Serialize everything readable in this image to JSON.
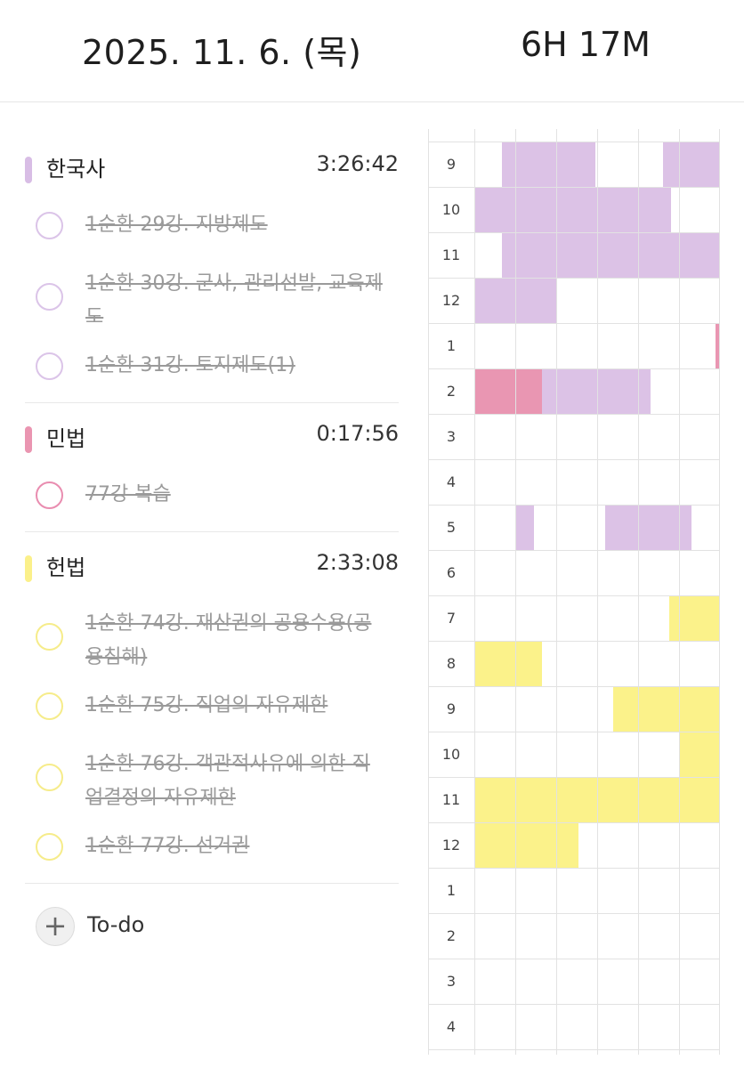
{
  "header": {
    "date": "2025. 11. 6. (목)",
    "total_time": "6H 17M"
  },
  "colors": {
    "purple": "#dcc2e6",
    "pink": "#e996b2",
    "yellow": "#fbf28a"
  },
  "subjects": [
    {
      "name": "한국사",
      "time": "3:26:42",
      "color": "#d8bde5",
      "circle": "#dbc4e8",
      "tasks": [
        "1순환 29강. 지방제도",
        "1순환 30강. 군사, 관리선발, 교육제도",
        "1순환 31강. 토지제도(1)"
      ]
    },
    {
      "name": "민법",
      "time": "0:17:56",
      "color": "#ea95b1",
      "circle": "#e98db0",
      "tasks": [
        "77강 복습"
      ]
    },
    {
      "name": "헌법",
      "time": "2:33:08",
      "color": "#fbf08a",
      "circle": "#f6ec8a",
      "tasks": [
        "1순환 74강. 재산권의 공용수용(공용침해)",
        "1순환 75강. 직업의 자유제한",
        "1순환 76강. 객관적사유에 의한 직업결정의 자유제한",
        "1순환 77강. 선거권"
      ]
    }
  ],
  "todo": {
    "label": "To-do",
    "icon": "plus-icon"
  },
  "timetable": {
    "hours": [
      "9",
      "10",
      "11",
      "12",
      "1",
      "2",
      "3",
      "4",
      "5",
      "6",
      "7",
      "8",
      "9",
      "10",
      "11",
      "12",
      "1",
      "2",
      "3",
      "4"
    ],
    "blocks": [
      {
        "row": 0,
        "from": 0.67,
        "to": 2.95,
        "color": "#dcc2e6"
      },
      {
        "row": 0,
        "from": 4.6,
        "to": 6.0,
        "color": "#dcc2e6"
      },
      {
        "row": 1,
        "from": 0.0,
        "to": 4.8,
        "color": "#dcc2e6"
      },
      {
        "row": 2,
        "from": 0.67,
        "to": 6.0,
        "color": "#dcc2e6"
      },
      {
        "row": 3,
        "from": 0.0,
        "to": 2.0,
        "color": "#dcc2e6"
      },
      {
        "row": 4,
        "from": 5.9,
        "to": 6.0,
        "color": "#e996b2"
      },
      {
        "row": 5,
        "from": 0.0,
        "to": 1.65,
        "color": "#e996b2"
      },
      {
        "row": 5,
        "from": 1.65,
        "to": 4.3,
        "color": "#dcc2e6"
      },
      {
        "row": 8,
        "from": 1.0,
        "to": 1.45,
        "color": "#dcc2e6"
      },
      {
        "row": 8,
        "from": 3.2,
        "to": 5.3,
        "color": "#dcc2e6"
      },
      {
        "row": 10,
        "from": 4.75,
        "to": 6.0,
        "color": "#fbf28a"
      },
      {
        "row": 11,
        "from": 0.0,
        "to": 1.65,
        "color": "#fbf28a"
      },
      {
        "row": 12,
        "from": 3.4,
        "to": 6.0,
        "color": "#fbf28a"
      },
      {
        "row": 13,
        "from": 5.0,
        "to": 6.0,
        "color": "#fbf28a"
      },
      {
        "row": 14,
        "from": 0.0,
        "to": 6.0,
        "color": "#fbf28a"
      },
      {
        "row": 15,
        "from": 0.0,
        "to": 2.55,
        "color": "#fbf28a"
      }
    ]
  }
}
